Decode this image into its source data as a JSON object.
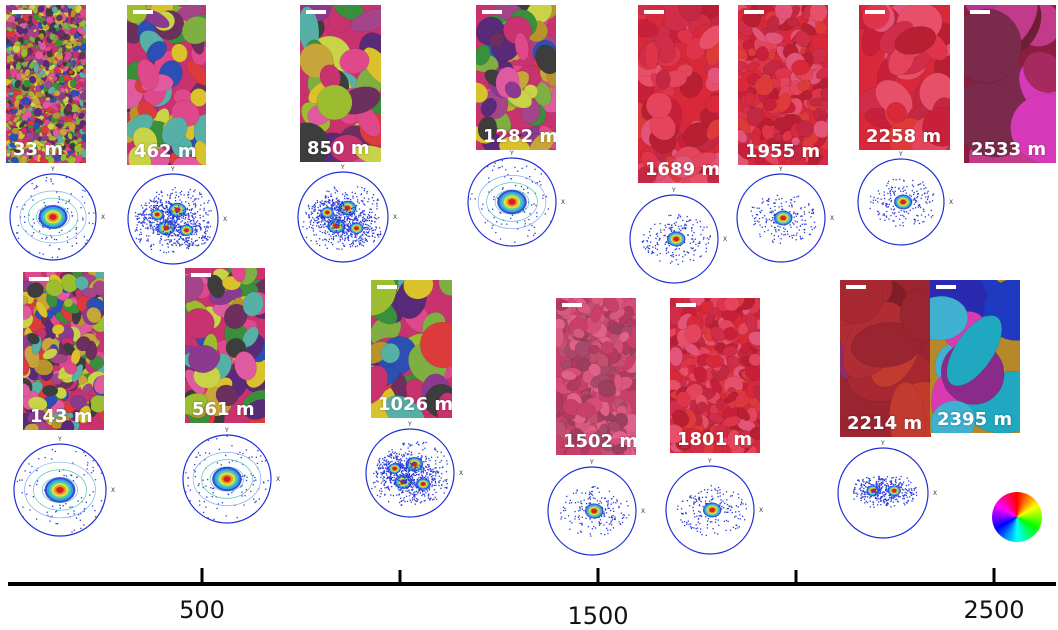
{
  "samples": [
    {
      "id": "s33",
      "depth_label": "33 m",
      "palette": "multi",
      "grains": "tiny"
    },
    {
      "id": "s462",
      "depth_label": "462 m",
      "palette": "multi",
      "grains": "medium"
    },
    {
      "id": "s850",
      "depth_label": "850 m",
      "palette": "multi",
      "grains": "large"
    },
    {
      "id": "s1282",
      "depth_label": "1282 m",
      "palette": "multi",
      "grains": "medium"
    },
    {
      "id": "s1689",
      "depth_label": "1689 m",
      "palette": "red",
      "grains": "medium"
    },
    {
      "id": "s1955",
      "depth_label": "1955 m",
      "palette": "red",
      "grains": "small"
    },
    {
      "id": "s2258",
      "depth_label": "2258 m",
      "palette": "red",
      "grains": "large"
    },
    {
      "id": "s2533",
      "depth_label": "2533 m",
      "palette": "magenta",
      "grains": "huge"
    },
    {
      "id": "s143",
      "depth_label": "143 m",
      "palette": "multi",
      "grains": "small"
    },
    {
      "id": "s561",
      "depth_label": "561 m",
      "palette": "multi",
      "grains": "medium"
    },
    {
      "id": "s1026",
      "depth_label": "1026 m",
      "palette": "multi",
      "grains": "large"
    },
    {
      "id": "s1502",
      "depth_label": "1502 m",
      "palette": "pink",
      "grains": "small"
    },
    {
      "id": "s1801",
      "depth_label": "1801 m",
      "palette": "red",
      "grains": "small"
    },
    {
      "id": "s2214",
      "depth_label": "2214 m",
      "palette": "redplus",
      "grains": "huge"
    },
    {
      "id": "s2395",
      "depth_label": "2395 m",
      "palette": "cyanblue",
      "grains": "huge"
    }
  ],
  "pole_figures": [
    {
      "id": "p33",
      "pattern": "broad"
    },
    {
      "id": "p462",
      "pattern": "multi"
    },
    {
      "id": "p850",
      "pattern": "multi"
    },
    {
      "id": "p1282",
      "pattern": "broad"
    },
    {
      "id": "p1689",
      "pattern": "single"
    },
    {
      "id": "p1955",
      "pattern": "single"
    },
    {
      "id": "p2258",
      "pattern": "single"
    },
    {
      "id": "p143",
      "pattern": "broad"
    },
    {
      "id": "p561",
      "pattern": "broad"
    },
    {
      "id": "p1026",
      "pattern": "multi"
    },
    {
      "id": "p1502",
      "pattern": "single"
    },
    {
      "id": "p1801",
      "pattern": "single"
    },
    {
      "id": "p2214",
      "pattern": "double"
    }
  ],
  "pole_axis_labels": {
    "y": "Y",
    "x": "X"
  },
  "depth_axis": {
    "unit": "m",
    "range": [
      0,
      2600
    ],
    "major_ticks": [
      {
        "value": 500,
        "label": "500"
      },
      {
        "value": 1000,
        "label": ""
      },
      {
        "value": 1500,
        "label": "1500"
      },
      {
        "value": 2000,
        "label": ""
      },
      {
        "value": 2500,
        "label": "2500"
      }
    ]
  },
  "colors": {
    "pole_circle": "#1f2fd6",
    "axis_line": "#000000",
    "label_text": "#ffffff"
  }
}
